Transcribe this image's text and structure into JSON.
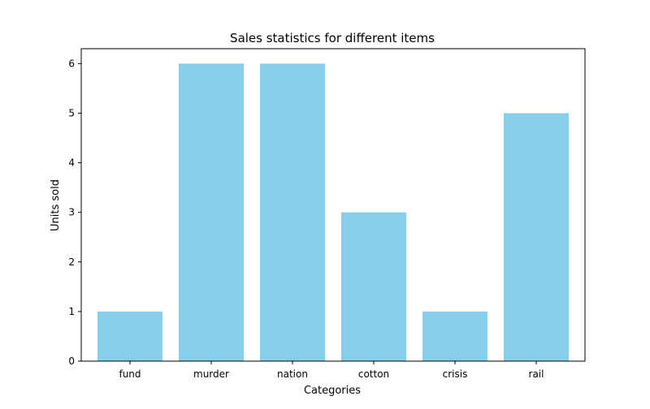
{
  "chart_data": {
    "type": "bar",
    "title": "Sales statistics for different items",
    "xlabel": "Categories",
    "ylabel": "Units sold",
    "categories": [
      "fund",
      "murder",
      "nation",
      "cotton",
      "crisis",
      "rail"
    ],
    "values": [
      1,
      6,
      6,
      3,
      1,
      5
    ],
    "ylim": [
      0,
      6.3
    ],
    "yticks": [
      0,
      1,
      2,
      3,
      4,
      5,
      6
    ],
    "grid": false,
    "bar_color": "#87CEEB"
  }
}
